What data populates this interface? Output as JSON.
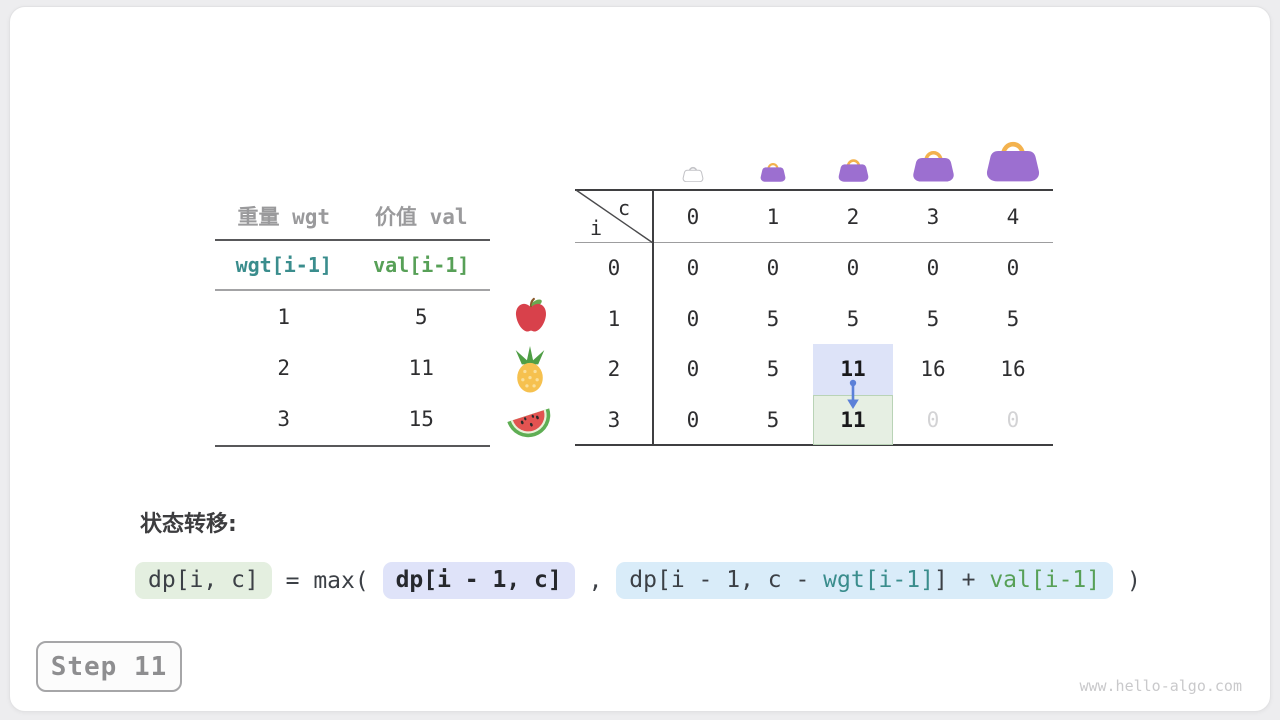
{
  "page": {
    "step_label": "Step 11",
    "watermark": "www.hello-algo.com",
    "transition_label": "状态转移:"
  },
  "items_table": {
    "headers": [
      "重量 wgt",
      "价值 val"
    ],
    "var_row": {
      "wgt": "wgt[i-1]",
      "val": "val[i-1]"
    },
    "rows": [
      {
        "wgt": "1",
        "val": "5",
        "icon": "apple"
      },
      {
        "wgt": "2",
        "val": "11",
        "icon": "pineapple"
      },
      {
        "wgt": "3",
        "val": "15",
        "icon": "watermelon"
      }
    ]
  },
  "dp_table": {
    "corner": {
      "col_var": "c",
      "row_var": "i"
    },
    "col_headers": [
      "0",
      "1",
      "2",
      "3",
      "4"
    ],
    "bags": [
      {
        "capacity": "0",
        "variant": "empty"
      },
      {
        "capacity": "1",
        "variant": "filled"
      },
      {
        "capacity": "2",
        "variant": "filled"
      },
      {
        "capacity": "3",
        "variant": "filled"
      },
      {
        "capacity": "4",
        "variant": "filled"
      }
    ],
    "rows": [
      {
        "label": "0",
        "cells": [
          {
            "v": "0"
          },
          {
            "v": "0"
          },
          {
            "v": "0"
          },
          {
            "v": "0"
          },
          {
            "v": "0"
          }
        ]
      },
      {
        "label": "1",
        "cells": [
          {
            "v": "0"
          },
          {
            "v": "5"
          },
          {
            "v": "5"
          },
          {
            "v": "5"
          },
          {
            "v": "5"
          }
        ]
      },
      {
        "label": "2",
        "cells": [
          {
            "v": "0"
          },
          {
            "v": "5"
          },
          {
            "v": "11",
            "style": "hl-blue"
          },
          {
            "v": "16"
          },
          {
            "v": "16"
          }
        ]
      },
      {
        "label": "3",
        "cells": [
          {
            "v": "0"
          },
          {
            "v": "5"
          },
          {
            "v": "11",
            "style": "hl-green"
          },
          {
            "v": "0",
            "style": "dim"
          },
          {
            "v": "0",
            "style": "dim"
          }
        ]
      }
    ],
    "arrow": {
      "from_cell": "i=2,c=2",
      "to_cell": "i=3,c=2"
    }
  },
  "formula": {
    "segments": [
      {
        "cls": "pill green",
        "text": "dp[i, c]"
      },
      {
        "cls": "plain",
        "text": " = max( "
      },
      {
        "cls": "pill lavender",
        "text": "dp[i - 1, c]"
      },
      {
        "cls": "plain",
        "text": " , "
      },
      {
        "cls": "pill blue",
        "parts": [
          {
            "text": "dp[i - 1, c - "
          },
          {
            "cls": "teal-t",
            "text": "wgt[i-1]"
          },
          {
            "text": "] + "
          },
          {
            "cls": "grn-t",
            "text": "val[i-1]"
          }
        ]
      },
      {
        "cls": "plain",
        "text": " )"
      }
    ]
  },
  "colors": {
    "teal": "#3a8d8d",
    "green": "#57a057",
    "purple": "#9c6fd0",
    "handle": "#f3b24e",
    "arrow_blue": "#5b80d8",
    "hl_blue": "#dde3f8",
    "hl_green": "#e6efe3",
    "hl_green_border": "#b9d3b6",
    "pill_green": "#e4efe0",
    "pill_lavender": "#dfe3f9",
    "pill_blue": "#d9ecf9",
    "dim": "#d3d3d5"
  }
}
